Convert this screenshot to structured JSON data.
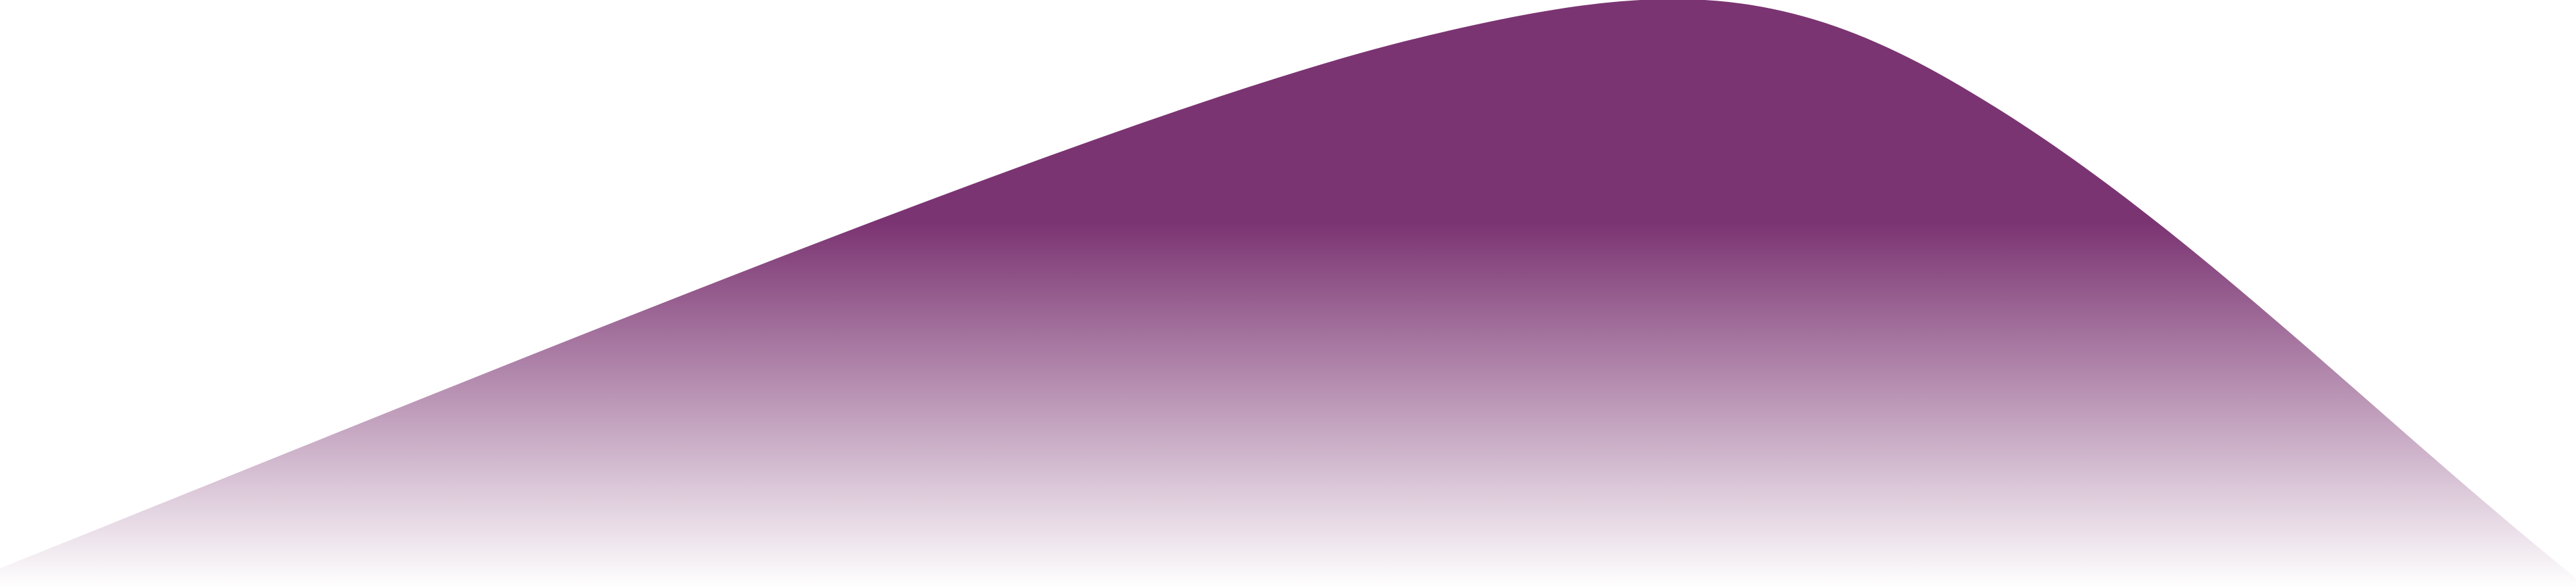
{
  "decoration": {
    "shape": "wave-hill",
    "fill_color": "#7b3472",
    "fade_to_color": "#ffffff"
  }
}
